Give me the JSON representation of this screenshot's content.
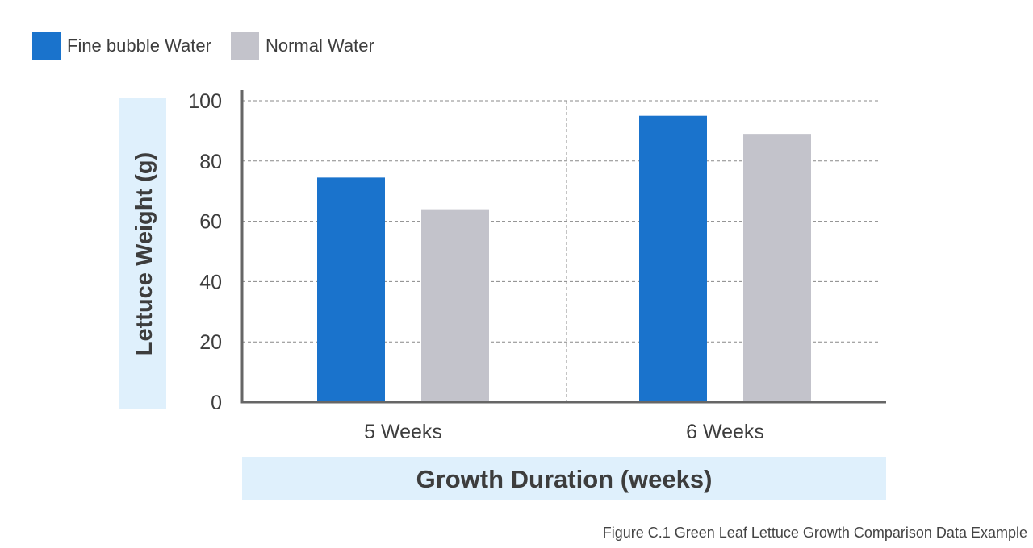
{
  "legend": [
    {
      "label": "Fine bubble Water",
      "color": "#1a73cc"
    },
    {
      "label": "Normal Water",
      "color": "#c3c3cb"
    }
  ],
  "caption": "Figure C.1 Green Leaf Lettuce Growth Comparison Data Example",
  "colors": {
    "axis": "#666666",
    "grid": "#888888",
    "label_band": "#dff0fc",
    "text": "#3d3d3d"
  },
  "chart_data": {
    "type": "bar",
    "categories": [
      "5 Weeks",
      "6 Weeks"
    ],
    "series": [
      {
        "name": "Fine bubble Water",
        "values": [
          74.5,
          95
        ],
        "color": "#1a73cc"
      },
      {
        "name": "Normal Water",
        "values": [
          64,
          89
        ],
        "color": "#c3c3cb"
      }
    ],
    "xlabel": "Growth Duration (weeks)",
    "ylabel": "Lettuce Weight (g)",
    "ylim": [
      0,
      100
    ],
    "yticks": [
      0,
      20,
      40,
      60,
      80,
      100
    ],
    "grid": true
  }
}
